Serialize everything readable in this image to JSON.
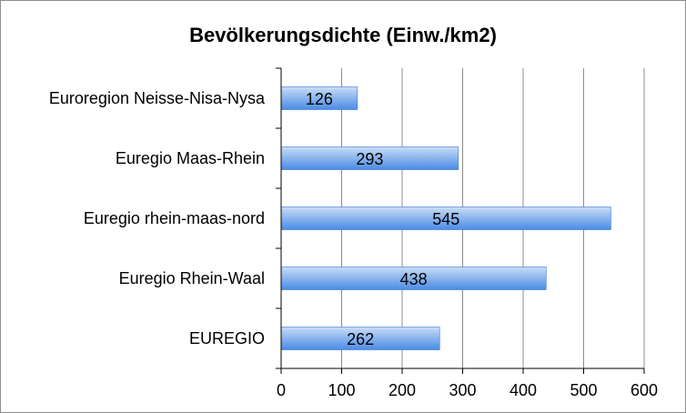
{
  "chart_data": {
    "type": "bar",
    "orientation": "horizontal",
    "title": "Bevölkerungsdichte (Einw./km2)",
    "xlabel": "",
    "ylabel": "",
    "categories": [
      "Euroregion Neisse-Nisa-Nysa",
      "Euregio Maas-Rhein",
      "Euregio rhein-maas-nord",
      "Euregio Rhein-Waal",
      "EUREGIO"
    ],
    "values": [
      126,
      293,
      545,
      438,
      262
    ],
    "data_labels": [
      "126",
      "293",
      "545",
      "438",
      "262"
    ],
    "xlim": [
      0,
      600
    ],
    "ticks": [
      0,
      100,
      200,
      300,
      400,
      500,
      600
    ],
    "tick_labels": [
      "0",
      "100",
      "200",
      "300",
      "400",
      "500",
      "600"
    ],
    "grid": "vertical",
    "legend": "none",
    "colors": {
      "bar_top": "#c9dcf5",
      "bar_bottom": "#4a8be6",
      "bar_edge": "#3a78d4",
      "grid": "#8c8c8c",
      "axis": "#000000"
    }
  }
}
